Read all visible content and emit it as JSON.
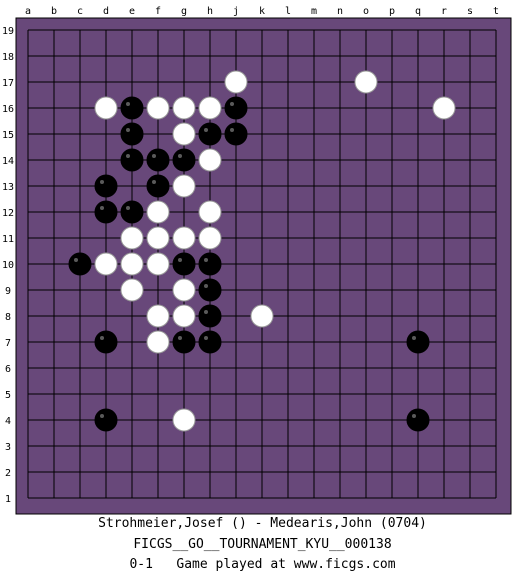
{
  "board": {
    "size": 19,
    "background": "#68487a",
    "border": "#000000",
    "grid_line": "#000000",
    "columns": [
      "a",
      "b",
      "c",
      "d",
      "e",
      "f",
      "g",
      "h",
      "j",
      "k",
      "l",
      "m",
      "n",
      "o",
      "p",
      "q",
      "r",
      "s",
      "t"
    ],
    "rows": [
      "19",
      "18",
      "17",
      "16",
      "15",
      "14",
      "13",
      "12",
      "11",
      "10",
      "9",
      "8",
      "7",
      "6",
      "5",
      "4",
      "3",
      "2",
      "1"
    ],
    "stones": {
      "black": [
        "e16",
        "j16",
        "e15",
        "h15",
        "j15",
        "e14",
        "f14",
        "g14",
        "d13",
        "f13",
        "d12",
        "e12",
        "c10",
        "g10",
        "h10",
        "h9",
        "h8",
        "d7",
        "g7",
        "h7",
        "q7",
        "d4",
        "q4"
      ],
      "white": [
        "j17",
        "o17",
        "d16",
        "f16",
        "g16",
        "h16",
        "r16",
        "g15",
        "h14",
        "g13",
        "f12",
        "h12",
        "e11",
        "f11",
        "g11",
        "h11",
        "d10",
        "e10",
        "f10",
        "e9",
        "g9",
        "f8",
        "g8",
        "k8",
        "f7",
        "g4"
      ]
    }
  },
  "caption": {
    "players": "Strohmeier,Josef () - Medearis,John (0704)",
    "event": "FICGS__GO__TOURNAMENT_KYU__000138",
    "result_line": "0-1   Game played at www.ficgs.com"
  }
}
